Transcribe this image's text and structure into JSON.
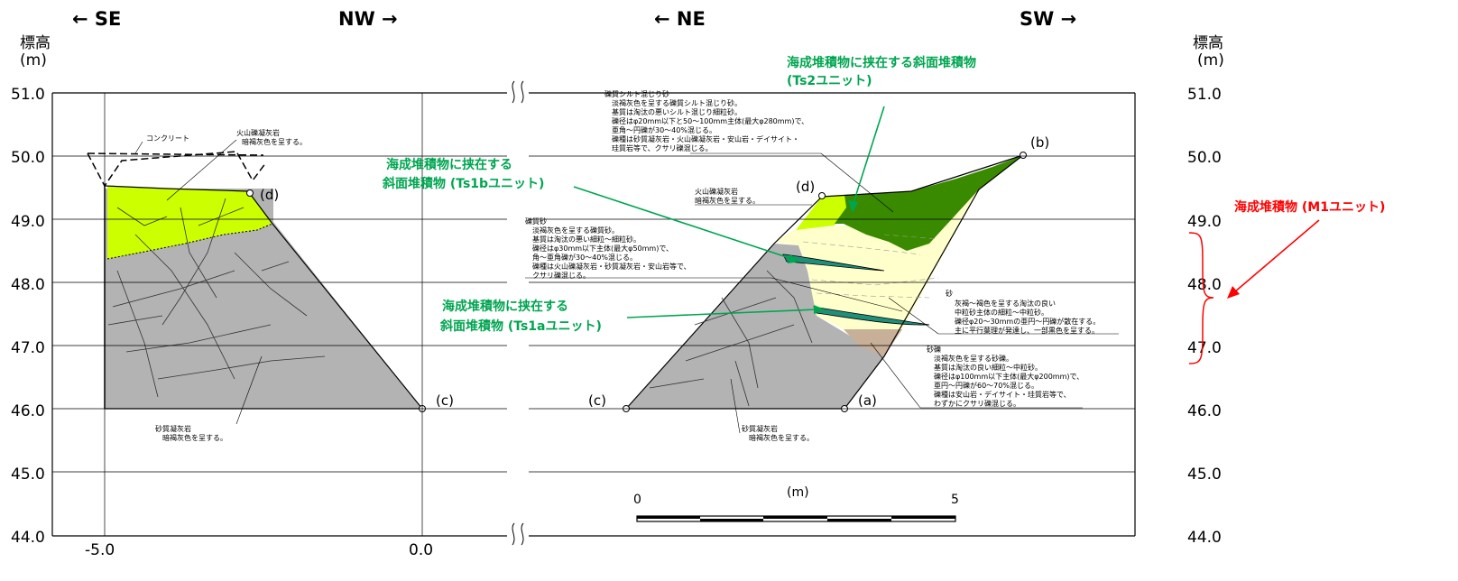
{
  "directions": [
    "← SE",
    "NW →",
    "← NE",
    "SW →"
  ],
  "y_axis": {
    "title_line1": "標高",
    "title_line2": "(m)",
    "ticks": [
      "51.0",
      "50.0",
      "49.0",
      "48.0",
      "47.0",
      "46.0",
      "45.0",
      "44.0"
    ]
  },
  "x_axis": {
    "ticks": [
      "-5.0",
      "0.0"
    ]
  },
  "points": {
    "d": "(d)",
    "c": "(c)",
    "b": "(b)",
    "a": "(a)"
  },
  "left_notes": {
    "concrete": "コンクリート",
    "volcanic_1": "火山礫凝灰岩",
    "volcanic_2": "暗褐灰色を呈する。",
    "sandy_tuff_1": "砂質凝灰岩",
    "sandy_tuff_2": "暗褐灰色を呈する。"
  },
  "right_notes": {
    "silt_sand": [
      "礫質シルト混じり砂",
      "淡褐灰色を呈する礫質シルト混じり砂。",
      "基質は淘汰の悪いシルト混じり細粒砂。",
      "礫径はφ20mm以下と50～100mm主体(最大φ280mm)で、",
      "亜角～円礫が30～40%混じる。",
      "礫種は砂質凝灰岩・火山礫凝灰岩・安山岩・デイサイト・",
      "珪質岩等で、クサリ礫混じる。"
    ],
    "volcanic": [
      "火山礫凝灰岩",
      "暗褐灰色を呈する。"
    ],
    "gravel_sand": [
      "礫質砂",
      "淡褐灰色を呈する礫質砂。",
      "基質は淘汰の悪い細粒～細粒砂。",
      "礫径はφ30mm以下主体(最大φ50mm)で、",
      "角～亜角礫が30～40%混じる。",
      "礫種は火山礫凝灰岩・砂質凝灰岩・安山岩等で、",
      "クサリ礫混じる。"
    ],
    "sand": [
      "砂",
      "灰褐～褐色を呈する淘汰の良い",
      "中粒砂主体の細粒～中粒砂。",
      "礫径φ20～30mmの亜円～円礫が散在する。",
      "主に平行葉理が発達し、一部黒色を呈する。"
    ],
    "sandy_gravel": [
      "砂礫",
      "淡褐灰色を呈する砂礫。",
      "基質は淘汰の良い細粒～中粒砂。",
      "礫径はφ100mm以下主体(最大φ200mm)で、",
      "亜円～円礫が60～70%混じる。",
      "礫種は安山岩・デイサイト・珪質岩等で、",
      "わずかにクサリ礫混じる。"
    ],
    "sandy_tuff": [
      "砂質凝灰岩",
      "暗褐灰色を呈する。"
    ]
  },
  "callouts": {
    "ts2_line1": "海成堆積物に挟在する斜面堆積物",
    "ts2_line2": "(Ts2ユニット)",
    "ts1b_line1": "海成堆積物に挟在する",
    "ts1b_line2": "斜面堆積物 (Ts1bユニット)",
    "ts1a_line1": "海成堆積物に挟在する",
    "ts1a_line2": "斜面堆積物 (Ts1aユニット)",
    "m1": "海成堆積物 (M1ユニット)"
  },
  "scale_bar": {
    "start": "0",
    "end": "5",
    "unit": "(m)"
  },
  "colors": {
    "tuff_gray": "#b3b3b3",
    "volcanic_yellowgreen": "#ccff00",
    "ts2_green": "#3a8a00",
    "sand_cream": "#ffffcc",
    "gravel_tan": "#c8b098",
    "ts1_teal": "#1f8f7a",
    "callout_green": "#00a550",
    "callout_red": "#ff0000"
  }
}
